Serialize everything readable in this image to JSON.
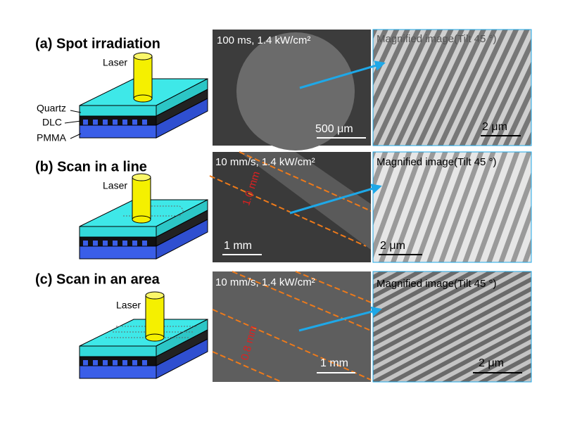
{
  "panels": [
    {
      "title": "(a) Spot irradiation",
      "laser_label": "Laser",
      "layer_labels": [
        "Quartz",
        "DLC",
        "PMMA"
      ],
      "sem": {
        "condition": "100 ms, 1.4 kW/cm²",
        "scale_bar": "500 μm"
      },
      "magnified": {
        "caption": "Magnified image(Tilt 45 °)",
        "scale_bar": "2 μm"
      }
    },
    {
      "title": "(b) Scan in a line",
      "laser_label": "Laser",
      "sem": {
        "condition": "10 mm/s, 1.4 kW/cm²",
        "dimension": "1.0 mm",
        "scale_bar": "1 mm"
      },
      "magnified": {
        "caption": "Magnified image(Tilt 45 °)",
        "scale_bar": "2 μm"
      }
    },
    {
      "title": "(c) Scan in an area",
      "laser_label": "Laser",
      "sem": {
        "condition": "10 mm/s, 1.4 kW/cm²",
        "dimension": "0.8 mm",
        "scale_bar": "1 mm"
      },
      "magnified": {
        "caption": "Magnified image(Tilt 45 °)",
        "scale_bar": "2 μm"
      }
    }
  ]
}
